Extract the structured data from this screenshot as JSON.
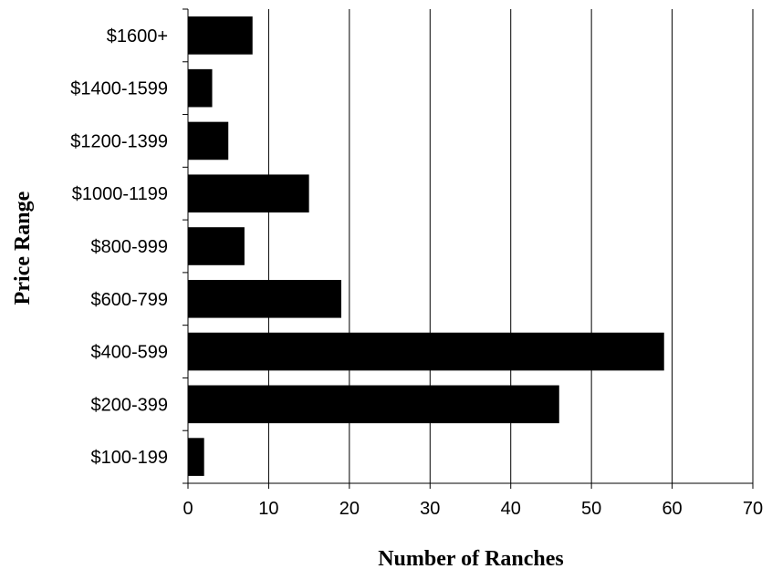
{
  "chart_data": {
    "type": "bar",
    "orientation": "horizontal",
    "categories": [
      "$100-199",
      "$200-399",
      "$400-599",
      "$600-799",
      "$800-999",
      "$1000-1199",
      "$1200-1399",
      "$1400-1599",
      "$1600+"
    ],
    "values": [
      2,
      46,
      59,
      19,
      7,
      15,
      5,
      3,
      8
    ],
    "xlabel": "Number of Ranches",
    "ylabel": "Price Range",
    "xlim": [
      0,
      70
    ],
    "xticks": [
      "0",
      "10",
      "20",
      "30",
      "40",
      "50",
      "60",
      "70"
    ],
    "grid": "vertical",
    "legend": "none",
    "bar_color": "#000000"
  }
}
